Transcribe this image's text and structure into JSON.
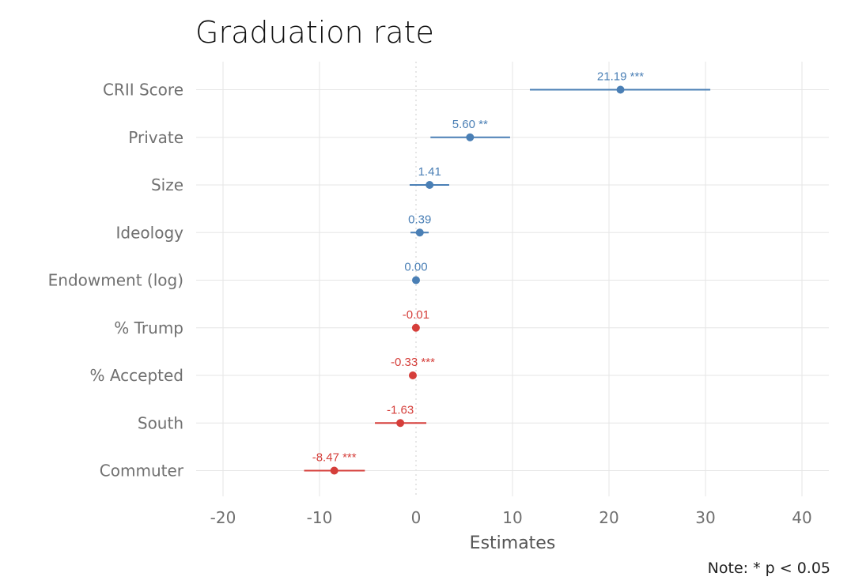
{
  "chart_data": {
    "type": "forest",
    "title": "Graduation rate",
    "xlabel": "Estimates",
    "note": "Note: * p < 0.05",
    "xlim": [
      -23,
      43
    ],
    "xticks": [
      -20,
      -10,
      0,
      10,
      20,
      30,
      40
    ],
    "grid": true,
    "colors": {
      "positive": "#4a7fb5",
      "negative": "#d53e3a",
      "grid": "#e6e6e6"
    },
    "terms": [
      {
        "label": "CRII Score",
        "estimate": 21.19,
        "ci": [
          11.8,
          30.5
        ],
        "label_text": "21.19 ***"
      },
      {
        "label": "Private",
        "estimate": 5.6,
        "ci": [
          1.5,
          9.75
        ],
        "label_text": "5.60 **"
      },
      {
        "label": "Size",
        "estimate": 1.41,
        "ci": [
          -0.66,
          3.44
        ],
        "label_text": "1.41"
      },
      {
        "label": "Ideology",
        "estimate": 0.39,
        "ci": [
          -0.57,
          1.31
        ],
        "label_text": "0.39"
      },
      {
        "label": "Endowment (log)",
        "estimate": 0.0,
        "ci": [
          -0.05,
          0.05
        ],
        "label_text": "0.00"
      },
      {
        "label": "% Trump",
        "estimate": -0.01,
        "ci": [
          -0.05,
          0.03
        ],
        "label_text": "-0.01"
      },
      {
        "label": "% Accepted",
        "estimate": -0.33,
        "ci": [
          -0.45,
          -0.21
        ],
        "label_text": "-0.33 ***"
      },
      {
        "label": "South",
        "estimate": -1.63,
        "ci": [
          -4.26,
          1.07
        ],
        "label_text": "-1.63"
      },
      {
        "label": "Commuter",
        "estimate": -8.47,
        "ci": [
          -11.6,
          -5.3
        ],
        "label_text": "-8.47 ***"
      }
    ]
  }
}
